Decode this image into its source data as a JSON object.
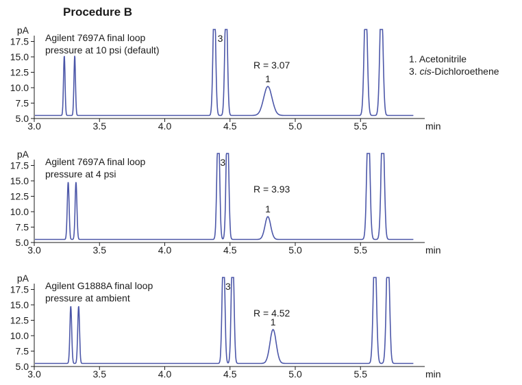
{
  "figure_title": "Procedure B",
  "legend": [
    "1. Acetonitrile",
    "3. cis-Dichloroethene"
  ],
  "legend_parts": [
    {
      "number": "1.",
      "name": "Acetonitrile"
    },
    {
      "number": "3.",
      "prefix_italic": "cis",
      "name": "-Dichloroethene"
    }
  ],
  "chart_data": [
    {
      "type": "line",
      "label_line1": "Agilent 7697A final loop",
      "label_line2": "pressure at 10 psi (default)",
      "resolution": "R = 3.07",
      "xlabel": "min",
      "ylabel": "pA",
      "xlim": [
        3.0,
        6.0
      ],
      "ylim": [
        5.0,
        19.0
      ],
      "x_ticks": [
        "3.0",
        "3.5",
        "4.0",
        "4.5",
        "5.0",
        "5.5"
      ],
      "y_ticks": [
        "5.0",
        "7.5",
        "10.0",
        "12.5",
        "15.0",
        "17.5"
      ],
      "baseline": 5.5,
      "peaks": [
        {
          "label": "",
          "rt": 3.23,
          "height": 15.2,
          "width": 0.006
        },
        {
          "label": "",
          "rt": 3.31,
          "height": 15.2,
          "width": 0.006
        },
        {
          "label": "3",
          "rt": 4.38,
          "height": 25,
          "width": 0.01
        },
        {
          "label": "3",
          "rt": 4.47,
          "height": 25,
          "width": 0.01
        },
        {
          "label": "1",
          "rt": 4.79,
          "height": 10.2,
          "width": 0.032
        },
        {
          "label": "",
          "rt": 5.54,
          "height": 25,
          "width": 0.012
        },
        {
          "label": "",
          "rt": 5.66,
          "height": 25,
          "width": 0.012
        }
      ]
    },
    {
      "type": "line",
      "label_line1": "Agilent 7697A final loop",
      "label_line2": "pressure at 4 psi",
      "resolution": "R = 3.93",
      "xlabel": "min",
      "ylabel": "pA",
      "xlim": [
        3.0,
        6.0
      ],
      "ylim": [
        5.0,
        19.0
      ],
      "x_ticks": [
        "3.0",
        "3.5",
        "4.0",
        "4.5",
        "5.0",
        "5.5"
      ],
      "y_ticks": [
        "5.0",
        "7.5",
        "10.0",
        "12.5",
        "15.0",
        "17.5"
      ],
      "baseline": 5.5,
      "peaks": [
        {
          "label": "",
          "rt": 3.26,
          "height": 14.8,
          "width": 0.007
        },
        {
          "label": "",
          "rt": 3.32,
          "height": 14.8,
          "width": 0.007
        },
        {
          "label": "3",
          "rt": 4.41,
          "height": 25,
          "width": 0.01
        },
        {
          "label": "3",
          "rt": 4.48,
          "height": 25,
          "width": 0.01
        },
        {
          "label": "1",
          "rt": 4.79,
          "height": 9.2,
          "width": 0.022
        },
        {
          "label": "",
          "rt": 5.56,
          "height": 25,
          "width": 0.012
        },
        {
          "label": "",
          "rt": 5.67,
          "height": 25,
          "width": 0.012
        }
      ]
    },
    {
      "type": "line",
      "label_line1": "Agilent G1888A final loop",
      "label_line2": "pressure at ambient",
      "resolution": "R = 4.52",
      "xlabel": "min",
      "ylabel": "pA",
      "xlim": [
        3.0,
        6.0
      ],
      "ylim": [
        5.0,
        19.0
      ],
      "x_ticks": [
        "3.0",
        "3.5",
        "4.0",
        "4.5",
        "5.0",
        "5.5"
      ],
      "y_ticks": [
        "5.0",
        "7.5",
        "10.0",
        "12.5",
        "15.0",
        "17.5"
      ],
      "baseline": 5.5,
      "peaks": [
        {
          "label": "",
          "rt": 3.28,
          "height": 14.8,
          "width": 0.007
        },
        {
          "label": "",
          "rt": 3.34,
          "height": 14.8,
          "width": 0.007
        },
        {
          "label": "3",
          "rt": 4.45,
          "height": 25,
          "width": 0.01
        },
        {
          "label": "3",
          "rt": 4.52,
          "height": 25,
          "width": 0.01
        },
        {
          "label": "1",
          "rt": 4.83,
          "height": 11.0,
          "width": 0.024
        },
        {
          "label": "",
          "rt": 5.61,
          "height": 25,
          "width": 0.012
        },
        {
          "label": "",
          "rt": 5.71,
          "height": 25,
          "width": 0.012
        }
      ]
    }
  ]
}
